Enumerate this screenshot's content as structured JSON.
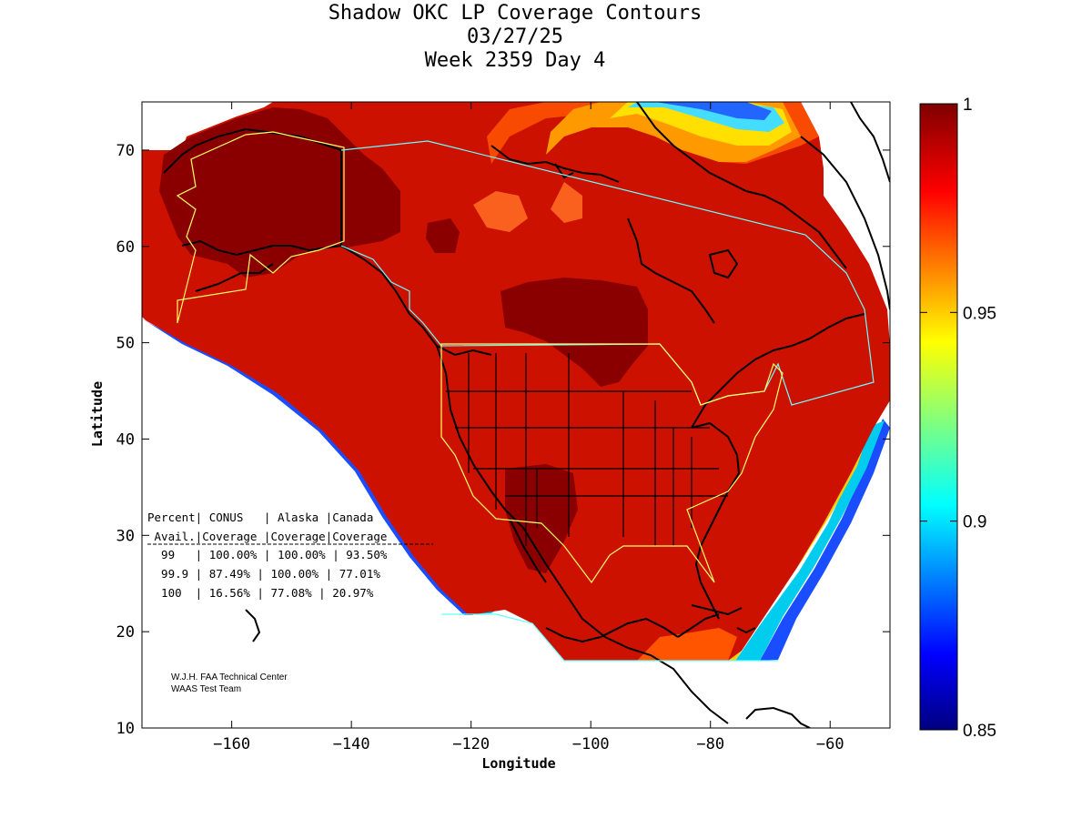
{
  "title": {
    "line1": "Shadow OKC LP Coverage Contours",
    "line2": "03/27/25",
    "line3": "Week 2359 Day 4"
  },
  "axes": {
    "xlabel": "Longitude",
    "ylabel": "Latitude",
    "xlim": [
      -175,
      -50
    ],
    "ylim": [
      10,
      75
    ],
    "xticks": [
      -160,
      -140,
      -120,
      -100,
      -80,
      -60
    ],
    "yticks": [
      10,
      20,
      30,
      40,
      50,
      60,
      70
    ]
  },
  "colorbar": {
    "min": 0.85,
    "max": 1,
    "ticks": [
      "1",
      "0.95",
      "0.9",
      "0.85"
    ],
    "tick_values": [
      1,
      0.95,
      0.9,
      0.85
    ]
  },
  "stats_table": {
    "header1": "Percent| CONUS   | Alaska |Canada",
    "header2": " Avail.|Coverage |Coverage|Coverage",
    "rows": [
      "  99   | 100.00% | 100.00% | 93.50%",
      "  99.9 | 87.49% | 100.00% | 77.01%",
      "  100  | 16.56% | 77.08% | 20.97%"
    ]
  },
  "credit": {
    "line1": "W.J.H. FAA Technical Center",
    "line2": "WAAS Test Team"
  },
  "colors": {
    "field_red": "#cc1100",
    "dark_red": "#8a0000",
    "orange": "#ff5500",
    "yellow": "#ffcc00",
    "cyan": "#00ccee",
    "blue": "#0033ee",
    "navy": "#000080",
    "coastline": "#000000",
    "boundary_yellow": "#ffff66",
    "boundary_cyan": "#66ffff"
  }
}
